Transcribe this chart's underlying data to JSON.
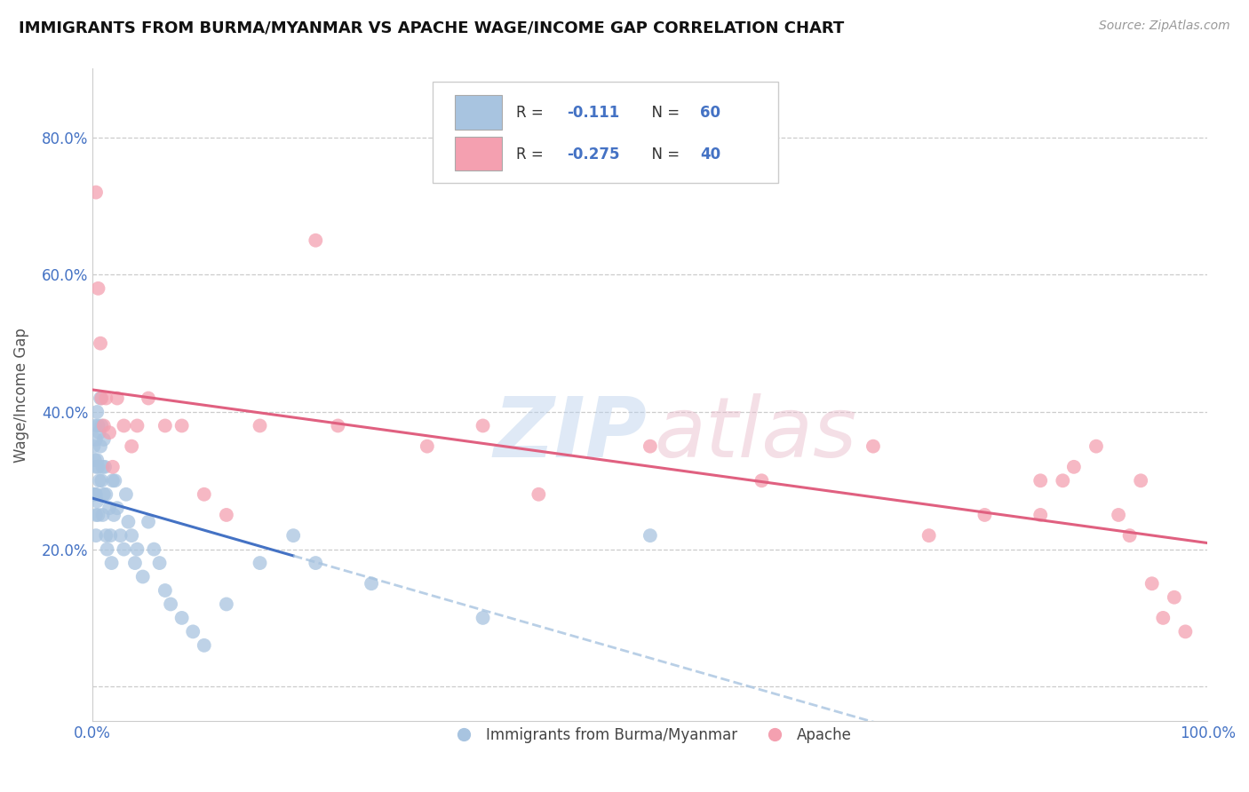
{
  "title": "IMMIGRANTS FROM BURMA/MYANMAR VS APACHE WAGE/INCOME GAP CORRELATION CHART",
  "source": "Source: ZipAtlas.com",
  "ylabel": "Wage/Income Gap",
  "xlim": [
    0.0,
    1.0
  ],
  "ylim": [
    -0.05,
    0.9
  ],
  "x_ticks": [
    0.0,
    0.2,
    0.4,
    0.6,
    0.8,
    1.0
  ],
  "x_tick_labels": [
    "0.0%",
    "",
    "",
    "",
    "",
    "100.0%"
  ],
  "y_ticks": [
    0.0,
    0.2,
    0.4,
    0.6,
    0.8
  ],
  "y_tick_labels": [
    "",
    "20.0%",
    "40.0%",
    "60.0%",
    "80.0%"
  ],
  "blue_R": -0.111,
  "blue_N": 60,
  "pink_R": -0.275,
  "pink_N": 40,
  "blue_color": "#a8c4e0",
  "pink_color": "#f4a0b0",
  "blue_line_color": "#4472c4",
  "pink_line_color": "#e06080",
  "blue_dash_color": "#a8c4e0",
  "blue_scatter_x": [
    0.001,
    0.001,
    0.002,
    0.002,
    0.002,
    0.003,
    0.003,
    0.003,
    0.003,
    0.003,
    0.004,
    0.004,
    0.004,
    0.005,
    0.005,
    0.005,
    0.006,
    0.006,
    0.007,
    0.007,
    0.008,
    0.008,
    0.009,
    0.009,
    0.01,
    0.01,
    0.011,
    0.012,
    0.012,
    0.013,
    0.015,
    0.016,
    0.017,
    0.018,
    0.019,
    0.02,
    0.022,
    0.025,
    0.028,
    0.03,
    0.032,
    0.035,
    0.038,
    0.04,
    0.045,
    0.05,
    0.055,
    0.06,
    0.065,
    0.07,
    0.08,
    0.09,
    0.1,
    0.12,
    0.15,
    0.18,
    0.2,
    0.25,
    0.35,
    0.5
  ],
  "blue_scatter_y": [
    0.35,
    0.28,
    0.38,
    0.33,
    0.28,
    0.36,
    0.32,
    0.28,
    0.25,
    0.22,
    0.4,
    0.33,
    0.27,
    0.38,
    0.32,
    0.25,
    0.37,
    0.3,
    0.42,
    0.35,
    0.38,
    0.3,
    0.32,
    0.25,
    0.36,
    0.28,
    0.32,
    0.28,
    0.22,
    0.2,
    0.26,
    0.22,
    0.18,
    0.3,
    0.25,
    0.3,
    0.26,
    0.22,
    0.2,
    0.28,
    0.24,
    0.22,
    0.18,
    0.2,
    0.16,
    0.24,
    0.2,
    0.18,
    0.14,
    0.12,
    0.1,
    0.08,
    0.06,
    0.12,
    0.18,
    0.22,
    0.18,
    0.15,
    0.1,
    0.22
  ],
  "pink_scatter_x": [
    0.003,
    0.005,
    0.007,
    0.008,
    0.01,
    0.012,
    0.015,
    0.018,
    0.022,
    0.028,
    0.035,
    0.04,
    0.05,
    0.065,
    0.08,
    0.1,
    0.12,
    0.15,
    0.2,
    0.22,
    0.3,
    0.35,
    0.4,
    0.5,
    0.6,
    0.7,
    0.75,
    0.8,
    0.85,
    0.85,
    0.87,
    0.88,
    0.9,
    0.92,
    0.93,
    0.94,
    0.95,
    0.96,
    0.97,
    0.98
  ],
  "pink_scatter_y": [
    0.72,
    0.58,
    0.5,
    0.42,
    0.38,
    0.42,
    0.37,
    0.32,
    0.42,
    0.38,
    0.35,
    0.38,
    0.42,
    0.38,
    0.38,
    0.28,
    0.25,
    0.38,
    0.65,
    0.38,
    0.35,
    0.38,
    0.28,
    0.35,
    0.3,
    0.35,
    0.22,
    0.25,
    0.3,
    0.25,
    0.3,
    0.32,
    0.35,
    0.25,
    0.22,
    0.3,
    0.15,
    0.1,
    0.13,
    0.08
  ]
}
